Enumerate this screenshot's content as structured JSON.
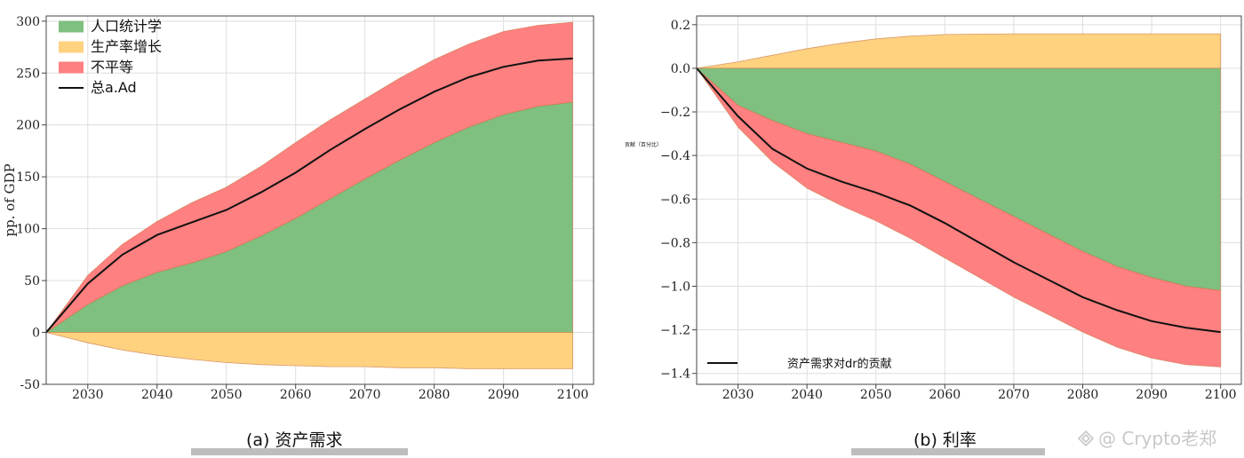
{
  "watermark": "@ Crypto老郑",
  "chart_data": [
    {
      "type": "area",
      "caption": "(a) 资产需求",
      "ylabel": "pp. of GDP",
      "xlabel": "",
      "xlim": [
        2024,
        2103
      ],
      "ylim": [
        -50,
        305
      ],
      "xticks": [
        2030,
        2040,
        2050,
        2060,
        2070,
        2080,
        2090,
        2100
      ],
      "yticks": [
        -50,
        0,
        50,
        100,
        150,
        200,
        250,
        300
      ],
      "grid": true,
      "legend_position": "top-left",
      "x": [
        2024,
        2030,
        2035,
        2040,
        2045,
        2050,
        2055,
        2060,
        2065,
        2070,
        2075,
        2080,
        2085,
        2090,
        2095,
        2100
      ],
      "series": [
        {
          "name": "人口统计学",
          "kind": "band",
          "color": "#7fbf7f",
          "lower": [
            0,
            0,
            0,
            0,
            0,
            0,
            0,
            0,
            0,
            0,
            0,
            0,
            0,
            0,
            0,
            0
          ],
          "upper": [
            0,
            27,
            45,
            58,
            67,
            78,
            93,
            110,
            129,
            148,
            166,
            183,
            198,
            210,
            218,
            222
          ]
        },
        {
          "name": "生产率增长",
          "kind": "band",
          "color": "#ffd280",
          "lower": [
            0,
            -10,
            -17,
            -22,
            -26,
            -29,
            -31,
            -32,
            -33,
            -33,
            -34,
            -34,
            -35,
            -35,
            -35,
            -35
          ],
          "upper": [
            0,
            0,
            0,
            0,
            0,
            0,
            0,
            0,
            0,
            0,
            0,
            0,
            0,
            0,
            0,
            0
          ]
        },
        {
          "name": "不平等",
          "kind": "band",
          "color": "#ff8080",
          "lower": [
            0,
            27,
            45,
            58,
            67,
            78,
            93,
            110,
            129,
            148,
            166,
            183,
            198,
            210,
            218,
            222
          ],
          "upper": [
            0,
            55,
            85,
            107,
            125,
            140,
            160,
            183,
            205,
            225,
            245,
            263,
            278,
            290,
            296,
            299
          ]
        },
        {
          "name": "总a.Ad",
          "kind": "line",
          "color": "#111111",
          "values": [
            0,
            47,
            75,
            94,
            106,
            118,
            135,
            154,
            176,
            196,
            215,
            232,
            246,
            256,
            262,
            264
          ]
        }
      ]
    },
    {
      "type": "area",
      "caption": "(b) 利率",
      "ylabel": "贡献（百分比）",
      "xlabel": "",
      "xlim": [
        2024,
        2103
      ],
      "ylim": [
        -1.45,
        0.24
      ],
      "xticks": [
        2030,
        2040,
        2050,
        2060,
        2070,
        2080,
        2090,
        2100
      ],
      "yticks": [
        0.2,
        0.0,
        -0.2,
        -0.4,
        -0.6,
        -0.8,
        -1.0,
        -1.2,
        -1.4
      ],
      "ytick_labels": [
        "0.2",
        "0.0",
        "−0.2",
        "−0.4",
        "−0.6",
        "−0.8",
        "−1.0",
        "−1.2",
        "−1.4"
      ],
      "grid": true,
      "legend_position": "bottom-left",
      "x": [
        2024,
        2030,
        2035,
        2040,
        2045,
        2050,
        2055,
        2060,
        2065,
        2070,
        2075,
        2080,
        2085,
        2090,
        2095,
        2100
      ],
      "series": [
        {
          "kind": "band",
          "color": "#ffd280",
          "lower": [
            0,
            0,
            0,
            0,
            0,
            0,
            0,
            0,
            0,
            0,
            0,
            0,
            0,
            0,
            0,
            0
          ],
          "upper": [
            0,
            0.03,
            0.06,
            0.09,
            0.115,
            0.135,
            0.148,
            0.155,
            0.157,
            0.158,
            0.158,
            0.158,
            0.158,
            0.158,
            0.158,
            0.158
          ]
        },
        {
          "kind": "band",
          "color": "#7fbf7f",
          "lower": [
            0,
            -0.17,
            -0.24,
            -0.3,
            -0.34,
            -0.38,
            -0.44,
            -0.52,
            -0.6,
            -0.68,
            -0.76,
            -0.84,
            -0.91,
            -0.96,
            -1.0,
            -1.02
          ],
          "upper": [
            0,
            0,
            0,
            0,
            0,
            0,
            0,
            0,
            0,
            0,
            0,
            0,
            0,
            0,
            0,
            0
          ]
        },
        {
          "kind": "band",
          "color": "#ff8080",
          "lower": [
            0,
            -0.27,
            -0.43,
            -0.55,
            -0.63,
            -0.7,
            -0.78,
            -0.87,
            -0.96,
            -1.05,
            -1.13,
            -1.21,
            -1.28,
            -1.33,
            -1.36,
            -1.37
          ],
          "upper": [
            0,
            -0.17,
            -0.24,
            -0.3,
            -0.34,
            -0.38,
            -0.44,
            -0.52,
            -0.6,
            -0.68,
            -0.76,
            -0.84,
            -0.91,
            -0.96,
            -1.0,
            -1.02
          ]
        },
        {
          "name": "资产需求对dr的贡献",
          "kind": "line",
          "color": "#111111",
          "values": [
            0,
            -0.22,
            -0.37,
            -0.46,
            -0.52,
            -0.57,
            -0.63,
            -0.71,
            -0.8,
            -0.89,
            -0.97,
            -1.05,
            -1.11,
            -1.16,
            -1.19,
            -1.21
          ]
        }
      ]
    }
  ]
}
